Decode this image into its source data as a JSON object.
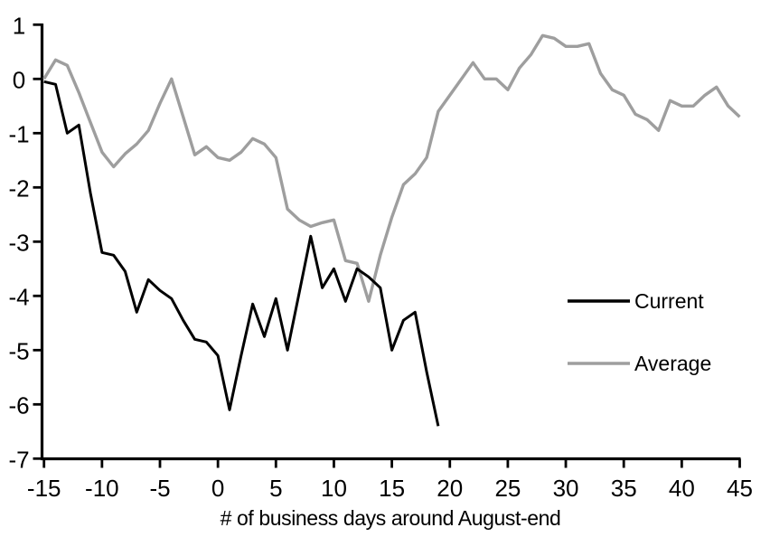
{
  "chart_data": {
    "type": "line",
    "title": "",
    "xlabel": "# of business days around August-end",
    "ylabel": "",
    "xlim": [
      -15,
      45
    ],
    "ylim": [
      -7,
      1
    ],
    "x_ticks": [
      -15,
      -10,
      -5,
      0,
      5,
      10,
      15,
      20,
      25,
      30,
      35,
      40,
      45
    ],
    "y_ticks": [
      1,
      0,
      -1,
      -2,
      -3,
      -4,
      -5,
      -6,
      -7
    ],
    "grid": false,
    "legend_position": "right-middle",
    "background_color": "#ffffff",
    "axis_color": "#000000",
    "series": [
      {
        "name": "Average",
        "color": "#9e9e9e",
        "stroke_width": 3.4,
        "x": [
          -15,
          -14,
          -13,
          -12,
          -11,
          -10,
          -9,
          -8,
          -7,
          -6,
          -5,
          -4,
          -3,
          -2,
          -1,
          0,
          1,
          2,
          3,
          4,
          5,
          6,
          7,
          8,
          9,
          10,
          11,
          12,
          13,
          14,
          15,
          16,
          17,
          18,
          19,
          20,
          21,
          22,
          23,
          24,
          25,
          26,
          27,
          28,
          29,
          30,
          31,
          32,
          33,
          34,
          35,
          36,
          37,
          38,
          39,
          40,
          41,
          42,
          43,
          44,
          45
        ],
        "values": [
          0.0,
          0.35,
          0.25,
          -0.25,
          -0.8,
          -1.35,
          -1.62,
          -1.38,
          -1.2,
          -0.95,
          -0.45,
          0.0,
          -0.7,
          -1.4,
          -1.25,
          -1.45,
          -1.5,
          -1.35,
          -1.1,
          -1.2,
          -1.45,
          -2.4,
          -2.6,
          -2.72,
          -2.65,
          -2.6,
          -3.35,
          -3.4,
          -4.1,
          -3.25,
          -2.55,
          -1.95,
          -1.75,
          -1.45,
          -0.6,
          -0.3,
          0.0,
          0.3,
          0.0,
          0.0,
          -0.2,
          0.2,
          0.45,
          0.8,
          0.75,
          0.6,
          0.6,
          0.65,
          0.1,
          -0.2,
          -0.3,
          -0.65,
          -0.75,
          -0.95,
          -0.4,
          -0.5,
          -0.5,
          -0.3,
          -0.15,
          -0.5,
          -0.7
        ]
      },
      {
        "name": "Current",
        "color": "#000000",
        "stroke_width": 3,
        "x": [
          -15,
          -14,
          -13,
          -12,
          -11,
          -10,
          -9,
          -8,
          -7,
          -6,
          -5,
          -4,
          -3,
          -2,
          -1,
          0,
          1,
          2,
          3,
          4,
          5,
          6,
          7,
          8,
          9,
          10,
          11,
          12,
          13,
          14,
          15,
          16,
          17,
          18,
          19
        ],
        "values": [
          -0.05,
          -0.1,
          -1.0,
          -0.85,
          -2.1,
          -3.2,
          -3.25,
          -3.55,
          -4.3,
          -3.7,
          -3.9,
          -4.05,
          -4.45,
          -4.8,
          -4.85,
          -5.1,
          -6.1,
          -5.1,
          -4.15,
          -4.75,
          -4.05,
          -5.0,
          -3.95,
          -2.9,
          -3.85,
          -3.5,
          -4.1,
          -3.5,
          -3.65,
          -3.85,
          -5.0,
          -4.45,
          -4.3,
          -5.4,
          -6.4
        ]
      }
    ],
    "legend": [
      {
        "label": "Current"
      },
      {
        "label": "Average"
      }
    ]
  }
}
